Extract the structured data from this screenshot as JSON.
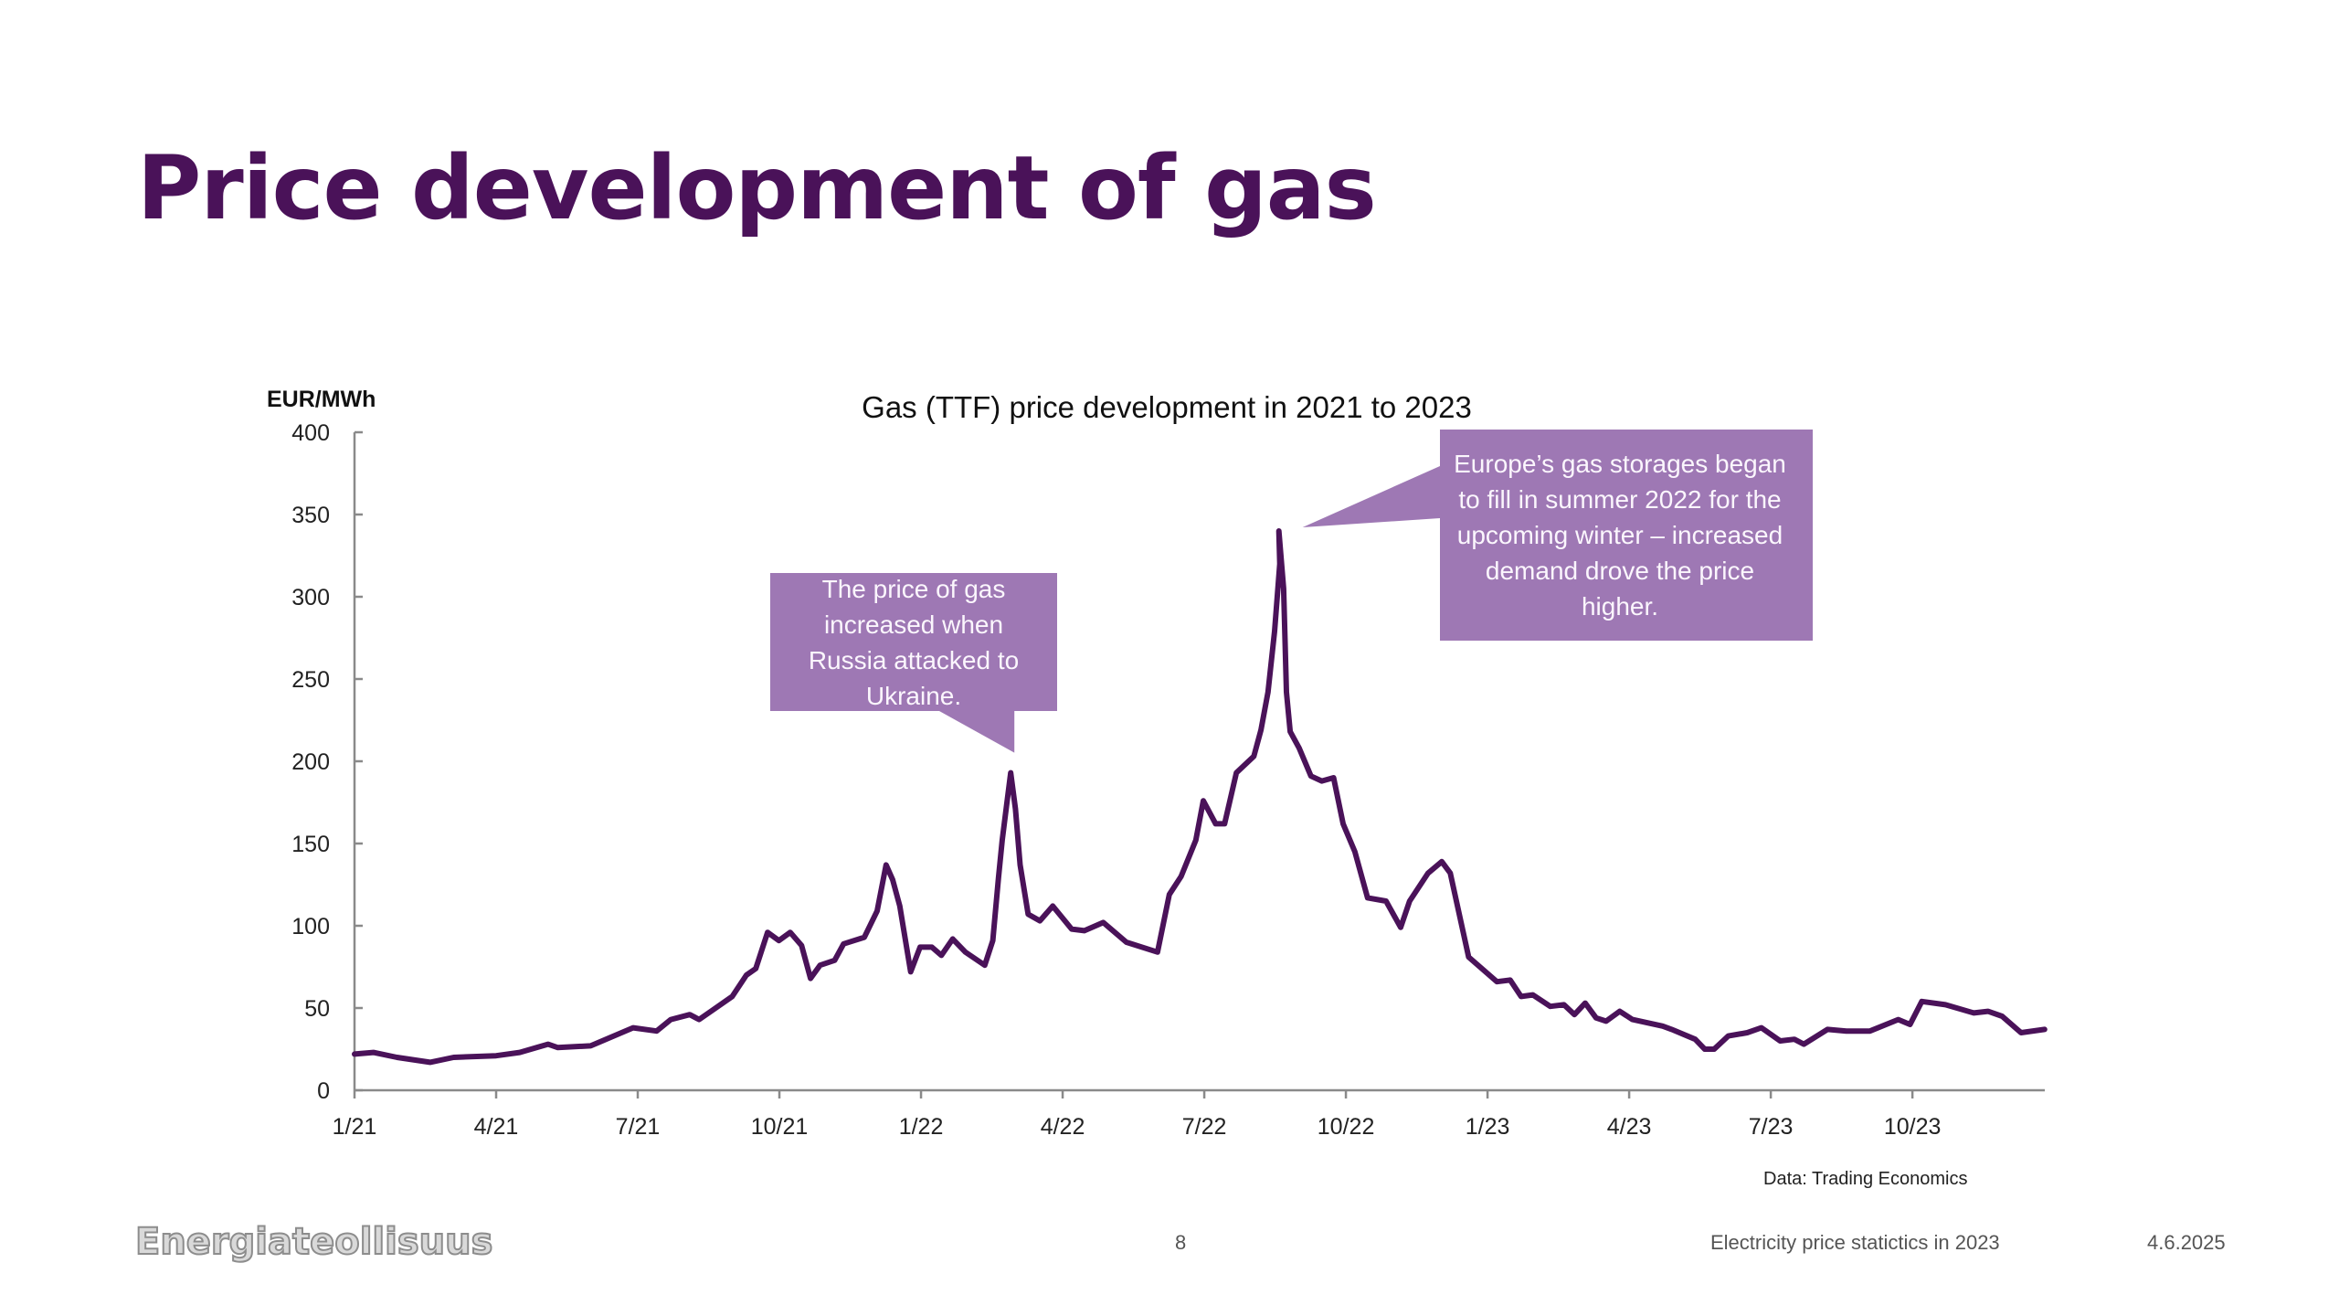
{
  "slide": {
    "title": "Price development of gas",
    "footer": {
      "logo_text": "Energiateollisuus",
      "page_number": "8",
      "presentation_title": "Electricity price statictics in 2023",
      "date": "4.6.2025"
    }
  },
  "colors": {
    "title": "#4a1259",
    "series": "#4a1259",
    "callout": "#9e78b4",
    "axis": "#8a8a8a"
  },
  "chart_data": {
    "type": "line",
    "title": "Gas (TTF) price development in 2021 to 2023",
    "xlabel": "",
    "ylabel": "EUR/MWh",
    "source": "Data: Trading Economics",
    "ylim": [
      0,
      400
    ],
    "yticks": [
      0,
      50,
      100,
      150,
      200,
      250,
      300,
      350,
      400
    ],
    "x_unit": "months since January 2021",
    "xlim": [
      0,
      35.8
    ],
    "xticks": [
      {
        "x": 0,
        "label": "1/21"
      },
      {
        "x": 3,
        "label": "4/21"
      },
      {
        "x": 6,
        "label": "7/21"
      },
      {
        "x": 9,
        "label": "10/21"
      },
      {
        "x": 12,
        "label": "1/22"
      },
      {
        "x": 15,
        "label": "4/22"
      },
      {
        "x": 18,
        "label": "7/22"
      },
      {
        "x": 21,
        "label": "10/22"
      },
      {
        "x": 24,
        "label": "1/23"
      },
      {
        "x": 27,
        "label": "4/23"
      },
      {
        "x": 30,
        "label": "7/23"
      },
      {
        "x": 33,
        "label": "10/23"
      }
    ],
    "grid": false,
    "legend": "none",
    "series": [
      {
        "name": "Gas (TTF) price",
        "points": [
          [
            0.0,
            22
          ],
          [
            0.4,
            23
          ],
          [
            0.9,
            20
          ],
          [
            1.6,
            17
          ],
          [
            2.1,
            20
          ],
          [
            3.0,
            21
          ],
          [
            3.5,
            23
          ],
          [
            4.1,
            28
          ],
          [
            4.3,
            26
          ],
          [
            5.0,
            27
          ],
          [
            5.9,
            38
          ],
          [
            6.4,
            36
          ],
          [
            6.7,
            43
          ],
          [
            7.1,
            46
          ],
          [
            7.3,
            43
          ],
          [
            7.6,
            49
          ],
          [
            8.0,
            57
          ],
          [
            8.3,
            70
          ],
          [
            8.5,
            74
          ],
          [
            8.75,
            96
          ],
          [
            8.99,
            91
          ],
          [
            9.23,
            96
          ],
          [
            9.47,
            88
          ],
          [
            9.66,
            68
          ],
          [
            9.86,
            76
          ],
          [
            10.17,
            79
          ],
          [
            10.36,
            89
          ],
          [
            10.8,
            93
          ],
          [
            11.07,
            109
          ],
          [
            11.26,
            137
          ],
          [
            11.4,
            128
          ],
          [
            11.55,
            112
          ],
          [
            11.78,
            72
          ],
          [
            11.98,
            87
          ],
          [
            12.23,
            87
          ],
          [
            12.43,
            82
          ],
          [
            12.67,
            92
          ],
          [
            12.94,
            84
          ],
          [
            13.35,
            76
          ],
          [
            13.52,
            91
          ],
          [
            13.64,
            129
          ],
          [
            13.72,
            152
          ],
          [
            13.82,
            175
          ],
          [
            13.9,
            193
          ],
          [
            14.0,
            171
          ],
          [
            14.1,
            137
          ],
          [
            14.27,
            107
          ],
          [
            14.52,
            103
          ],
          [
            14.79,
            112
          ],
          [
            15.19,
            98
          ],
          [
            15.46,
            97
          ],
          [
            15.86,
            102
          ],
          [
            16.35,
            90
          ],
          [
            17.01,
            84
          ],
          [
            17.26,
            119
          ],
          [
            17.51,
            130
          ],
          [
            17.82,
            152
          ],
          [
            17.98,
            176
          ],
          [
            18.24,
            162
          ],
          [
            18.43,
            162
          ],
          [
            18.68,
            193
          ],
          [
            19.05,
            203
          ],
          [
            19.2,
            219
          ],
          [
            19.35,
            242
          ],
          [
            19.49,
            279
          ],
          [
            19.6,
            320
          ],
          [
            19.58,
            340
          ],
          [
            19.68,
            305
          ],
          [
            19.74,
            242
          ],
          [
            19.82,
            218
          ],
          [
            20.01,
            208
          ],
          [
            20.26,
            191
          ],
          [
            20.49,
            188
          ],
          [
            20.74,
            190
          ],
          [
            20.94,
            162
          ],
          [
            21.19,
            145
          ],
          [
            21.46,
            117
          ],
          [
            21.85,
            115
          ],
          [
            22.16,
            99
          ],
          [
            22.35,
            115
          ],
          [
            22.74,
            132
          ],
          [
            23.03,
            139
          ],
          [
            23.21,
            132
          ],
          [
            23.6,
            81
          ],
          [
            24.2,
            66
          ],
          [
            24.48,
            67
          ],
          [
            24.71,
            57
          ],
          [
            24.96,
            58
          ],
          [
            25.33,
            51
          ],
          [
            25.62,
            52
          ],
          [
            25.84,
            46
          ],
          [
            26.07,
            53
          ],
          [
            26.3,
            44
          ],
          [
            26.51,
            42
          ],
          [
            26.8,
            48
          ],
          [
            27.07,
            43
          ],
          [
            27.71,
            39
          ],
          [
            27.9,
            37
          ],
          [
            28.4,
            31
          ],
          [
            28.6,
            25
          ],
          [
            28.8,
            25
          ],
          [
            29.1,
            33
          ],
          [
            29.5,
            35
          ],
          [
            29.8,
            38
          ],
          [
            30.2,
            30
          ],
          [
            30.5,
            31
          ],
          [
            30.7,
            28
          ],
          [
            31.2,
            37
          ],
          [
            31.6,
            36
          ],
          [
            32.1,
            36
          ],
          [
            32.7,
            43
          ],
          [
            32.95,
            40
          ],
          [
            33.2,
            54
          ],
          [
            33.7,
            52
          ],
          [
            34.3,
            47
          ],
          [
            34.6,
            48
          ],
          [
            34.9,
            45
          ],
          [
            35.3,
            35
          ],
          [
            35.8,
            37
          ]
        ]
      }
    ],
    "annotations": [
      {
        "text": "The price of gas increased when Russia attacked to Ukraine.",
        "points_to": {
          "x": 13.9,
          "y": 193
        }
      },
      {
        "text": "Europe’s gas storages began to fill in summer 2022 for the upcoming winter – increased demand drove the price higher.",
        "points_to": {
          "x": 19.58,
          "y": 340
        }
      }
    ]
  }
}
